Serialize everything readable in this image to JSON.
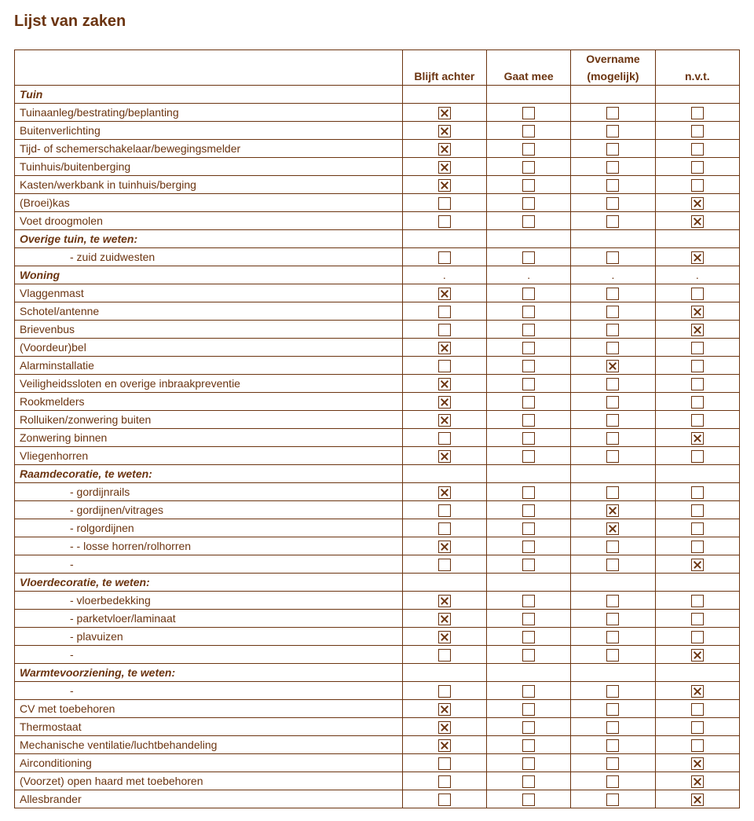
{
  "title": "Lijst van zaken",
  "columns": [
    "Blijft achter",
    "Gaat mee",
    "Overname (mogelijk)",
    "n.v.t."
  ],
  "rows": [
    {
      "type": "section",
      "label": "Tuin"
    },
    {
      "type": "item",
      "label": "Tuinaanleg/bestrating/beplanting",
      "checks": [
        "x",
        "o",
        "o",
        "o"
      ]
    },
    {
      "type": "item",
      "label": "Buitenverlichting",
      "checks": [
        "x",
        "o",
        "o",
        "o"
      ]
    },
    {
      "type": "item",
      "label": "Tijd- of schemerschakelaar/bewegingsmelder",
      "checks": [
        "x",
        "o",
        "o",
        "o"
      ]
    },
    {
      "type": "item",
      "label": "Tuinhuis/buitenberging",
      "checks": [
        "x",
        "o",
        "o",
        "o"
      ]
    },
    {
      "type": "item",
      "label": "Kasten/werkbank in tuinhuis/berging",
      "checks": [
        "x",
        "o",
        "o",
        "o"
      ]
    },
    {
      "type": "item",
      "label": "(Broei)kas",
      "checks": [
        "o",
        "o",
        "o",
        "x"
      ]
    },
    {
      "type": "item",
      "label": "Voet droogmolen",
      "checks": [
        "o",
        "o",
        "o",
        "x"
      ]
    },
    {
      "type": "section",
      "label": "Overige tuin, te weten:"
    },
    {
      "type": "indent",
      "label": "- zuid zuidwesten",
      "checks": [
        "o",
        "o",
        "o",
        "x"
      ]
    },
    {
      "type": "section-d",
      "label": "Woning",
      "checks": [
        ".",
        ".",
        ".",
        "."
      ]
    },
    {
      "type": "item",
      "label": "Vlaggenmast",
      "checks": [
        "x",
        "o",
        "o",
        "o"
      ]
    },
    {
      "type": "item",
      "label": "Schotel/antenne",
      "checks": [
        "o",
        "o",
        "o",
        "x"
      ]
    },
    {
      "type": "item",
      "label": "Brievenbus",
      "checks": [
        "o",
        "o",
        "o",
        "x"
      ]
    },
    {
      "type": "item",
      "label": "(Voordeur)bel",
      "checks": [
        "x",
        "o",
        "o",
        "o"
      ]
    },
    {
      "type": "item",
      "label": "Alarminstallatie",
      "checks": [
        "o",
        "o",
        "x",
        "o"
      ]
    },
    {
      "type": "item",
      "label": "Veiligheidssloten en overige inbraakpreventie",
      "checks": [
        "x",
        "o",
        "o",
        "o"
      ]
    },
    {
      "type": "item",
      "label": "Rookmelders",
      "checks": [
        "x",
        "o",
        "o",
        "o"
      ]
    },
    {
      "type": "item",
      "label": "Rolluiken/zonwering buiten",
      "checks": [
        "x",
        "o",
        "o",
        "o"
      ]
    },
    {
      "type": "item",
      "label": "Zonwering binnen",
      "checks": [
        "o",
        "o",
        "o",
        "x"
      ]
    },
    {
      "type": "item",
      "label": "Vliegenhorren",
      "checks": [
        "x",
        "o",
        "o",
        "o"
      ]
    },
    {
      "type": "section",
      "label": "Raamdecoratie, te weten:"
    },
    {
      "type": "indent",
      "label": "- gordijnrails",
      "checks": [
        "x",
        "o",
        "o",
        "o"
      ]
    },
    {
      "type": "indent",
      "label": "- gordijnen/vitrages",
      "checks": [
        "o",
        "o",
        "x",
        "o"
      ]
    },
    {
      "type": "indent",
      "label": "- rolgordijnen",
      "checks": [
        "o",
        "o",
        "x",
        "o"
      ]
    },
    {
      "type": "indent",
      "label": "- - losse horren/rolhorren",
      "checks": [
        "x",
        "o",
        "o",
        "o"
      ]
    },
    {
      "type": "indent",
      "label": "- ",
      "checks": [
        "o",
        "o",
        "o",
        "x"
      ]
    },
    {
      "type": "section",
      "label": "Vloerdecoratie, te weten:"
    },
    {
      "type": "indent",
      "label": "- vloerbedekking",
      "checks": [
        "x",
        "o",
        "o",
        "o"
      ]
    },
    {
      "type": "indent",
      "label": "- parketvloer/laminaat",
      "checks": [
        "x",
        "o",
        "o",
        "o"
      ]
    },
    {
      "type": "indent",
      "label": "- plavuizen",
      "checks": [
        "x",
        "o",
        "o",
        "o"
      ]
    },
    {
      "type": "indent",
      "label": "- ",
      "checks": [
        "o",
        "o",
        "o",
        "x"
      ]
    },
    {
      "type": "section",
      "label": "Warmtevoorziening, te weten:"
    },
    {
      "type": "indent",
      "label": "- ",
      "checks": [
        "o",
        "o",
        "o",
        "x"
      ]
    },
    {
      "type": "item",
      "label": "CV met toebehoren",
      "checks": [
        "x",
        "o",
        "o",
        "o"
      ]
    },
    {
      "type": "item",
      "label": "Thermostaat",
      "checks": [
        "x",
        "o",
        "o",
        "o"
      ]
    },
    {
      "type": "item",
      "label": "Mechanische ventilatie/luchtbehandeling",
      "checks": [
        "x",
        "o",
        "o",
        "o"
      ]
    },
    {
      "type": "item",
      "label": "Airconditioning",
      "checks": [
        "o",
        "o",
        "o",
        "x"
      ]
    },
    {
      "type": "item",
      "label": "(Voorzet) open haard met toebehoren",
      "checks": [
        "o",
        "o",
        "o",
        "x"
      ]
    },
    {
      "type": "item",
      "label": "Allesbrander",
      "checks": [
        "o",
        "o",
        "o",
        "x"
      ]
    }
  ]
}
